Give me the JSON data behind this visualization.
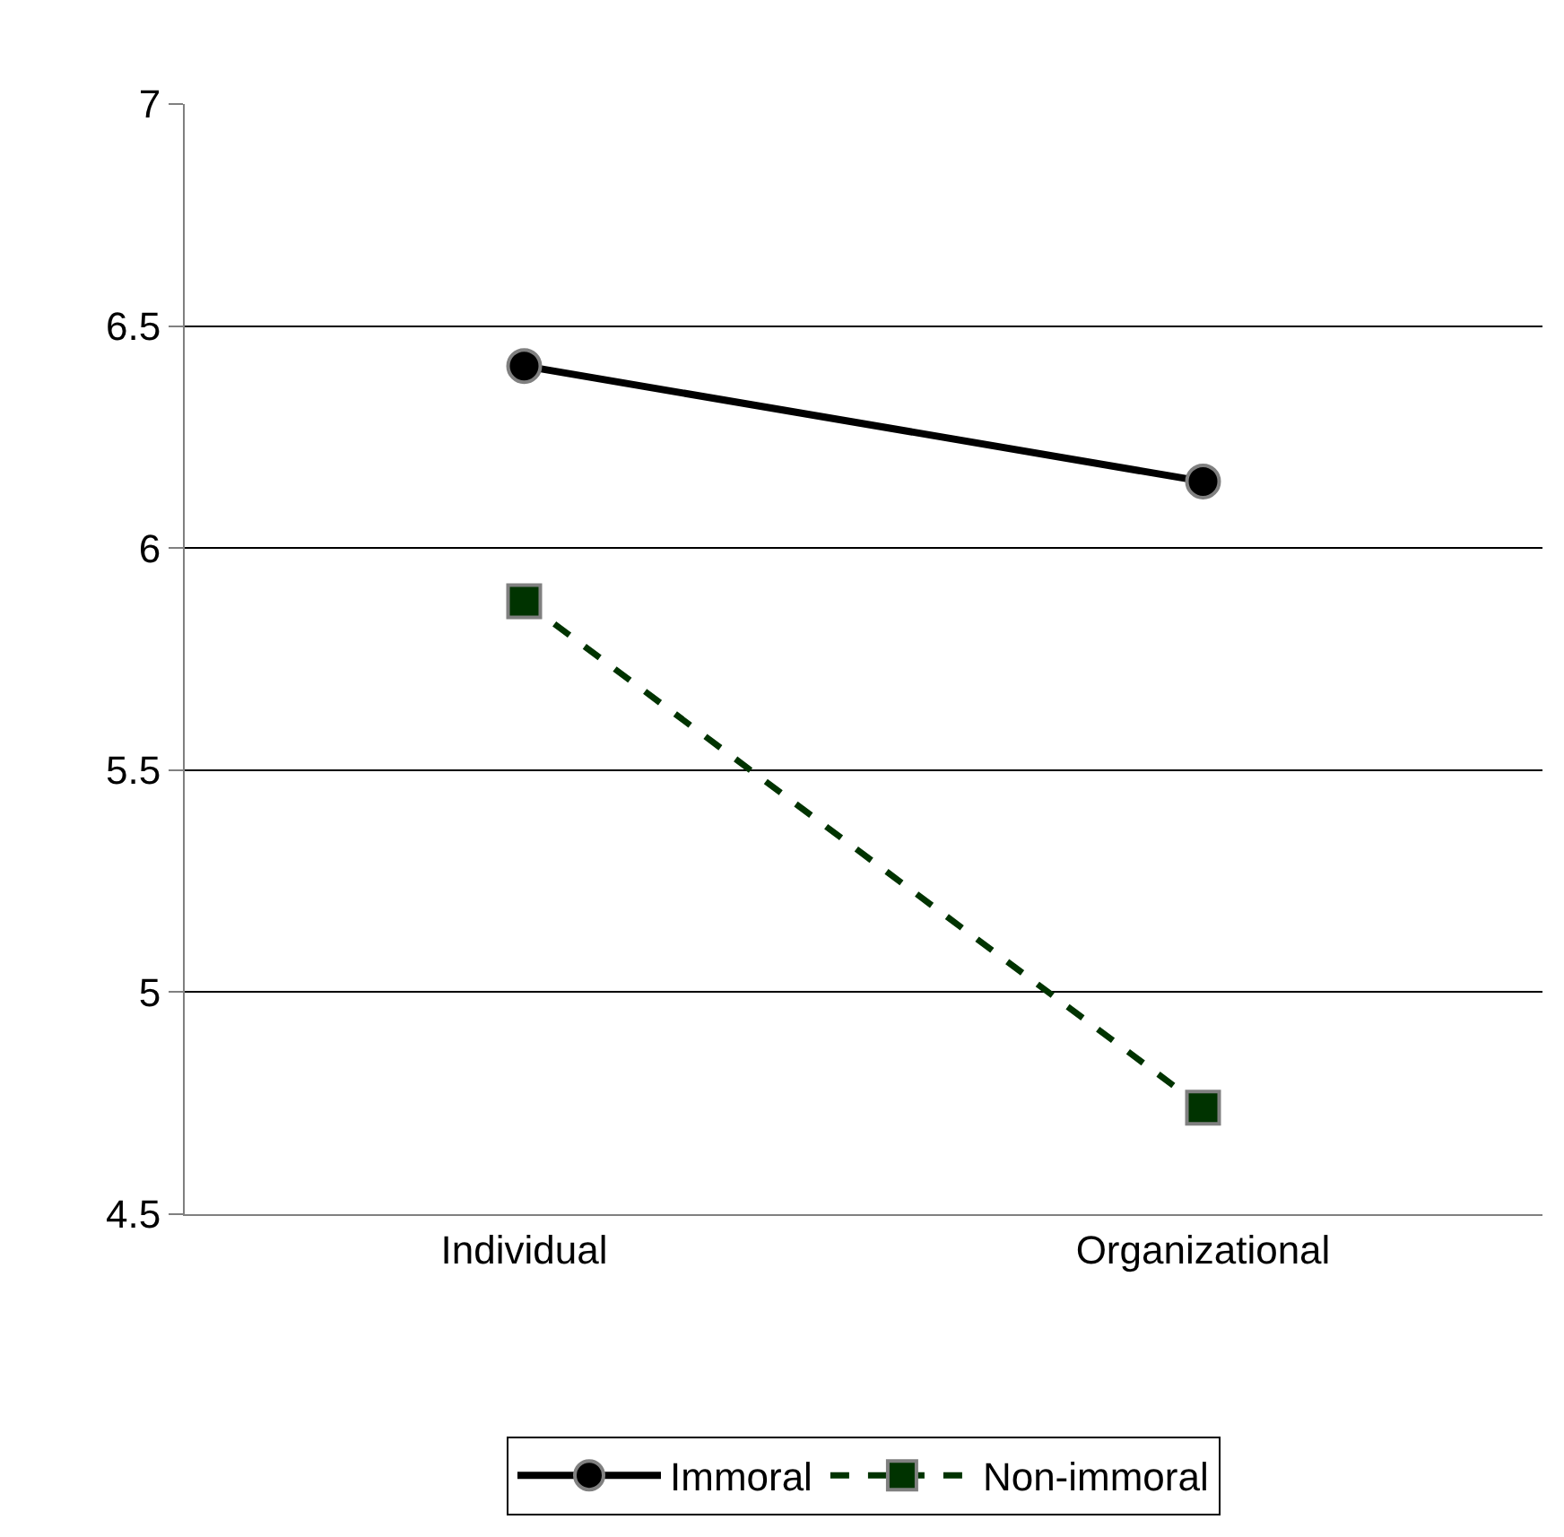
{
  "chart_data": {
    "type": "line",
    "categories": [
      "Individual",
      "Organizational"
    ],
    "series": [
      {
        "name": "Immoral",
        "color": "#000000",
        "values": [
          6.41,
          6.15
        ],
        "marker": "circle",
        "line_style": "solid"
      },
      {
        "name": "Non-immoral",
        "color": "#003300",
        "values": [
          5.88,
          4.74
        ],
        "marker": "square",
        "line_style": "dashed"
      }
    ],
    "ylim": [
      4.5,
      7
    ],
    "yticks": [
      4.5,
      5,
      5.5,
      6,
      6.5,
      7
    ],
    "grid": "y",
    "legend": "bottom"
  }
}
